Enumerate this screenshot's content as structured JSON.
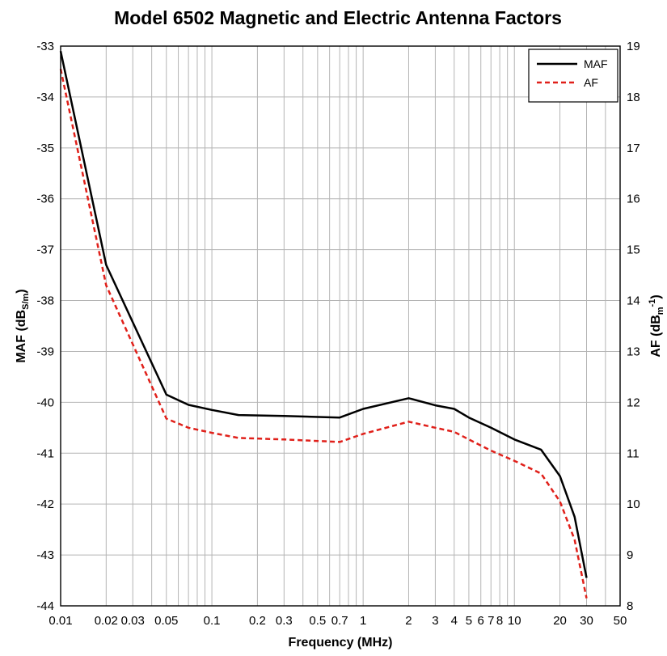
{
  "chart_data": {
    "type": "line",
    "title": "Model 6502 Magnetic and Electric Antenna Factors",
    "xlabel": "Frequency (MHz)",
    "ylabel_left": {
      "main": "MAF (dB",
      "sub": "S/m",
      "close": ")"
    },
    "ylabel_right": {
      "main": "AF (dB",
      "sub": "m",
      "sup": "-1",
      "close": ")"
    },
    "x_scale": "log",
    "xlim": [
      0.01,
      50
    ],
    "ylim_left": [
      -44,
      -33
    ],
    "ylim_right": [
      8,
      19
    ],
    "grid": true,
    "legend_position": "top-right",
    "x_ticks": [
      {
        "value": 0.01,
        "label": "0.01"
      },
      {
        "value": 0.02,
        "label": "0.02"
      },
      {
        "value": 0.03,
        "label": "0.03"
      },
      {
        "value": 0.05,
        "label": "0.05"
      },
      {
        "value": 0.1,
        "label": "0.1"
      },
      {
        "value": 0.2,
        "label": "0.2"
      },
      {
        "value": 0.3,
        "label": "0.3"
      },
      {
        "value": 0.5,
        "label": "0.5"
      },
      {
        "value": 0.7,
        "label": "0.7"
      },
      {
        "value": 1,
        "label": "1"
      },
      {
        "value": 2,
        "label": "2"
      },
      {
        "value": 3,
        "label": "3"
      },
      {
        "value": 4,
        "label": "4"
      },
      {
        "value": 5,
        "label": "5"
      },
      {
        "value": 6,
        "label": "6"
      },
      {
        "value": 7,
        "label": "7"
      },
      {
        "value": 8,
        "label": "8"
      },
      {
        "value": 10,
        "label": "10"
      },
      {
        "value": 20,
        "label": "20"
      },
      {
        "value": 30,
        "label": "30"
      },
      {
        "value": 50,
        "label": "50"
      }
    ],
    "y_left_ticks": [
      "-33",
      "-34",
      "-35",
      "-36",
      "-37",
      "-38",
      "-39",
      "-40",
      "-41",
      "-42",
      "-43",
      "-44"
    ],
    "y_right_ticks": [
      "19",
      "18",
      "17",
      "16",
      "15",
      "14",
      "13",
      "12",
      "11",
      "10",
      "9",
      "8"
    ],
    "series": [
      {
        "name": "MAF",
        "axis": "left",
        "color": "#000000",
        "dash": "solid",
        "x": [
          0.01,
          0.02,
          0.05,
          0.07,
          0.1,
          0.15,
          0.3,
          0.7,
          1,
          2,
          3,
          4,
          5,
          7,
          10,
          15,
          20,
          25,
          30
        ],
        "y": [
          -33.1,
          -37.3,
          -39.85,
          -40.05,
          -40.15,
          -40.25,
          -40.27,
          -40.3,
          -40.13,
          -39.92,
          -40.06,
          -40.13,
          -40.3,
          -40.5,
          -40.73,
          -40.93,
          -41.45,
          -42.25,
          -43.45
        ]
      },
      {
        "name": "AF",
        "axis": "right",
        "color": "#e0201a",
        "dash": "dashed",
        "x": [
          0.01,
          0.02,
          0.05,
          0.07,
          0.1,
          0.15,
          0.3,
          0.7,
          1,
          2,
          3,
          4,
          5,
          7,
          10,
          15,
          20,
          25,
          30
        ],
        "y": [
          18.55,
          14.3,
          11.68,
          11.5,
          11.4,
          11.3,
          11.27,
          11.22,
          11.38,
          11.62,
          11.5,
          11.42,
          11.27,
          11.05,
          10.85,
          10.6,
          10.05,
          9.3,
          8.15
        ]
      }
    ]
  }
}
